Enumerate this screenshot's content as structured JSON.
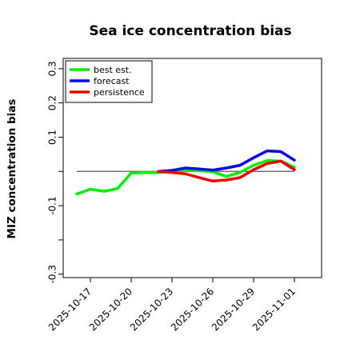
{
  "chart_data": {
    "type": "line",
    "title": "Sea ice concentration bias",
    "xlabel": "",
    "ylabel": "MIZ concentration bias",
    "ylim": [
      -0.31,
      0.33
    ],
    "yticks": [
      -0.3,
      -0.2,
      -0.1,
      0.0,
      0.1,
      0.2,
      0.3
    ],
    "ytick_labels": [
      "-0.3",
      "",
      "-0.1",
      "",
      "0.1",
      "0.2",
      "0.3"
    ],
    "xlim": [
      "2025-10-15",
      "2025-11-03"
    ],
    "xticks": [
      "2025-10-17",
      "2025-10-20",
      "2025-10-23",
      "2025-10-26",
      "2025-10-29",
      "2025-11-01"
    ],
    "highlighted_xtick": "2025-10-23",
    "highlight_color": "#2e7d32",
    "reference_line": {
      "y": 0.0,
      "color": "#555555"
    },
    "legend": {
      "placement": "top-left"
    },
    "series": [
      {
        "name": "best est.",
        "color": "#00ee00",
        "x": [
          "2025-10-16",
          "2025-10-17",
          "2025-10-18",
          "2025-10-19",
          "2025-10-20",
          "2025-10-21",
          "2025-10-22",
          "2025-10-23",
          "2025-10-24",
          "2025-10-25",
          "2025-10-26",
          "2025-10-27",
          "2025-10-28",
          "2025-10-29",
          "2025-10-30",
          "2025-10-31",
          "2025-11-01"
        ],
        "values": [
          -0.066,
          -0.052,
          -0.058,
          -0.05,
          -0.005,
          -0.003,
          -0.003,
          0.0,
          0.003,
          0.002,
          -0.001,
          -0.015,
          -0.003,
          0.018,
          0.032,
          0.03,
          0.012
        ]
      },
      {
        "name": "forecast",
        "color": "#0000ee",
        "x": [
          "2025-10-22",
          "2025-10-23",
          "2025-10-24",
          "2025-10-25",
          "2025-10-26",
          "2025-10-27",
          "2025-10-28",
          "2025-10-29",
          "2025-10-30",
          "2025-10-31",
          "2025-11-01"
        ],
        "values": [
          0.0,
          0.003,
          0.01,
          0.007,
          0.004,
          0.01,
          0.018,
          0.04,
          0.06,
          0.058,
          0.033
        ]
      },
      {
        "name": "persistence",
        "color": "#ee0000",
        "x": [
          "2025-10-22",
          "2025-10-23",
          "2025-10-24",
          "2025-10-25",
          "2025-10-26",
          "2025-10-27",
          "2025-10-28",
          "2025-10-29",
          "2025-10-30",
          "2025-10-31",
          "2025-11-01"
        ],
        "values": [
          0.0,
          -0.003,
          -0.007,
          -0.018,
          -0.028,
          -0.025,
          -0.018,
          0.005,
          0.023,
          0.03,
          0.005
        ]
      }
    ]
  }
}
